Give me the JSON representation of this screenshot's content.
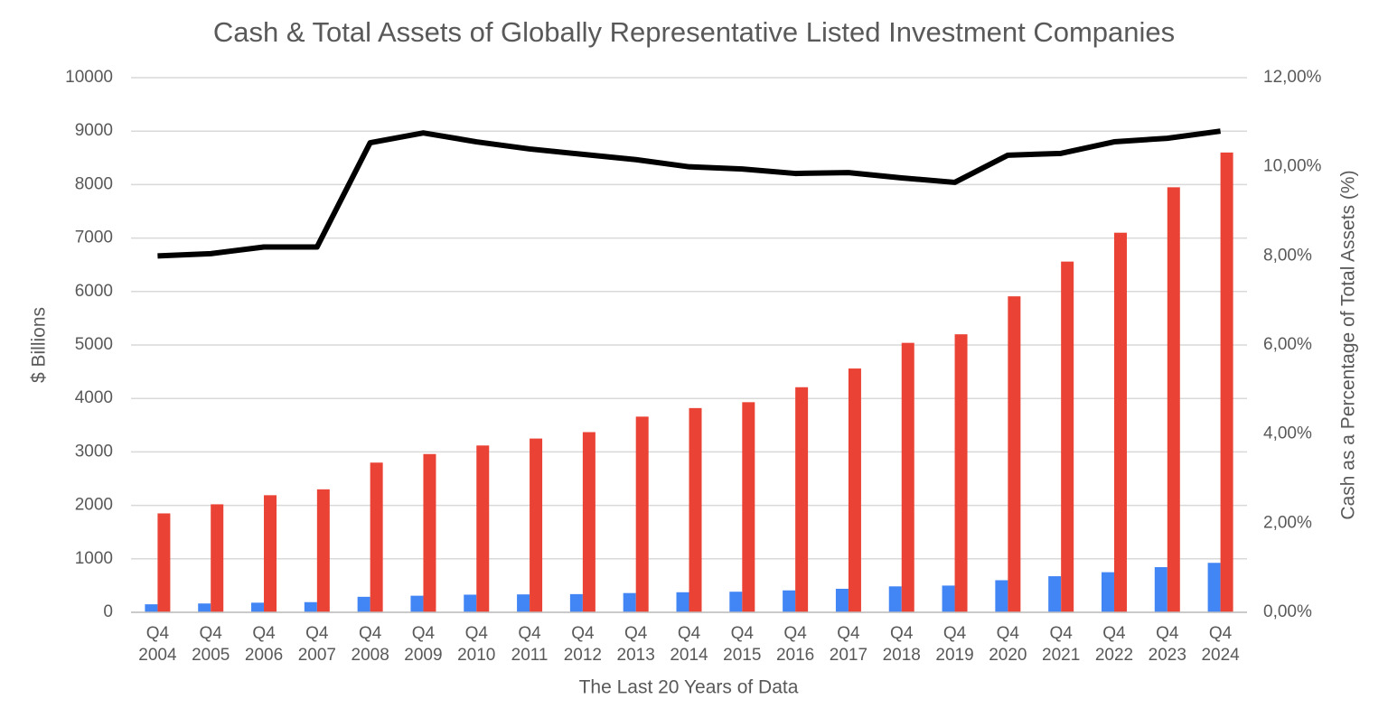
{
  "chart_data": {
    "type": "bar",
    "title": "Cash & Total Assets of Globally Representative Listed Investment Companies",
    "x_label": "The Last 20 Years of Data",
    "y_label": "$ Billions",
    "y2_label": "Cash as a Percentage of Total Assets (%)",
    "categories": [
      "Q4 2004",
      "Q4 2005",
      "Q4 2006",
      "Q4 2007",
      "Q4 2008",
      "Q4 2009",
      "Q4 2010",
      "Q4 2011",
      "Q4 2012",
      "Q4 2013",
      "Q4 2014",
      "Q4 2015",
      "Q4 2016",
      "Q4 2017",
      "Q4 2018",
      "Q4 2019",
      "Q4 2020",
      "Q4 2021",
      "Q4 2022",
      "Q4 2023",
      "Q4 2024"
    ],
    "series": [
      {
        "color": "#4285f4",
        "values": [
          150,
          165,
          180,
          190,
          290,
          310,
          330,
          335,
          340,
          360,
          375,
          385,
          410,
          440,
          485,
          500,
          600,
          675,
          750,
          845,
          925
        ]
      },
      {
        "color": "#ea4335",
        "values": [
          1850,
          2020,
          2190,
          2300,
          2800,
          2960,
          3120,
          3250,
          3370,
          3660,
          3820,
          3930,
          4210,
          4560,
          5040,
          5200,
          5910,
          6560,
          7100,
          7950,
          8600
        ]
      },
      {
        "color": "#000000",
        "type": "line",
        "axis": "y2",
        "values": [
          8.0,
          8.05,
          8.2,
          8.2,
          10.54,
          10.76,
          10.56,
          10.4,
          10.28,
          10.16,
          10.0,
          9.95,
          9.85,
          9.87,
          9.75,
          9.65,
          10.26,
          10.3,
          10.56,
          10.64,
          10.8
        ]
      }
    ],
    "ylim": [
      0,
      10000
    ],
    "yticks": [
      0,
      1000,
      2000,
      3000,
      4000,
      5000,
      6000,
      7000,
      8000,
      9000,
      10000
    ],
    "y2lim": [
      0,
      12
    ],
    "y2ticks": [
      {
        "value": 0,
        "label": "0,00%"
      },
      {
        "value": 2,
        "label": "2,00%"
      },
      {
        "value": 4,
        "label": "4,00%"
      },
      {
        "value": 6,
        "label": "6,00%"
      },
      {
        "value": 8,
        "label": "8,00%"
      },
      {
        "value": 10,
        "label": "10,00%"
      },
      {
        "value": 12,
        "label": "12,00%"
      }
    ],
    "grid": true
  }
}
